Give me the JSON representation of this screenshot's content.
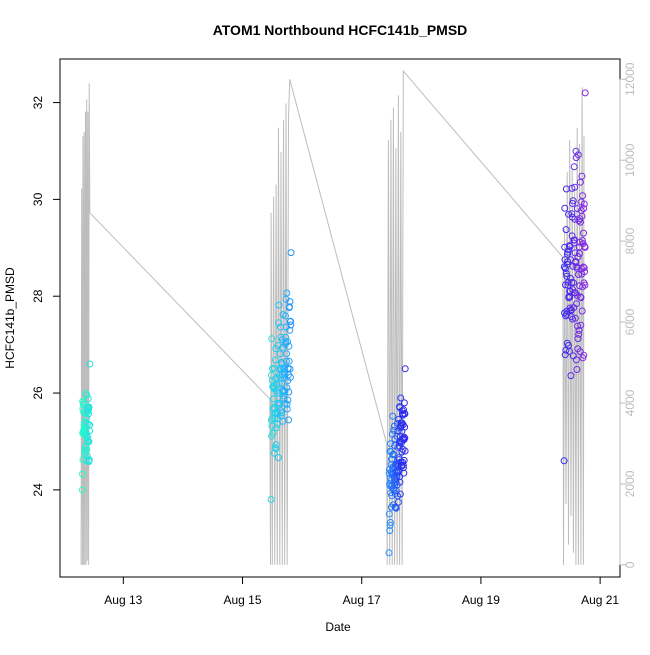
{
  "chart_data": {
    "type": "scatter",
    "title": "ATOM1 Northbound HCFC141b_PMSD",
    "xlabel": "Date",
    "ylabel": "HCFC141b_PMSD",
    "xlim": [
      "2016-08-11T22:30",
      "2016-08-21T08:00"
    ],
    "ylim": [
      22.2,
      32.9
    ],
    "y2lim": [
      -300,
      12500
    ],
    "x_ticks": [
      {
        "label": "Aug 13",
        "t": "2016-08-13T00:00"
      },
      {
        "label": "Aug 15",
        "t": "2016-08-15T00:00"
      },
      {
        "label": "Aug 17",
        "t": "2016-08-17T00:00"
      },
      {
        "label": "Aug 19",
        "t": "2016-08-19T00:00"
      },
      {
        "label": "Aug 21",
        "t": "2016-08-21T00:00"
      }
    ],
    "y_ticks": [
      24,
      26,
      28,
      30,
      32
    ],
    "y2_ticks": [
      0,
      2000,
      4000,
      6000,
      8000,
      10000,
      12000
    ],
    "colors": {
      "points_gradient": [
        "#27ffc8",
        "#22b4ff",
        "#2a2af0",
        "#8a2be2"
      ],
      "line": "#bdbdbd",
      "axis": "#000000",
      "secondary_axis": "#bdbdbd"
    },
    "grid": false,
    "point_groups": [
      {
        "start": "2016-08-12T07:30",
        "end": "2016-08-12T10:30",
        "count": 60,
        "ymin": 24.0,
        "ymax": 26.6,
        "trend": 0.0
      },
      {
        "start": "2016-08-15T11:30",
        "end": "2016-08-15T19:30",
        "count": 110,
        "ymin": 23.8,
        "ymax": 28.9,
        "trend": 1.4
      },
      {
        "start": "2016-08-17T11:00",
        "end": "2016-08-17T17:30",
        "count": 120,
        "ymin": 22.7,
        "ymax": 26.5,
        "trend": 1.5
      },
      {
        "start": "2016-08-20T09:30",
        "end": "2016-08-20T18:00",
        "count": 120,
        "ymin": 24.6,
        "ymax": 32.2,
        "trend": 0.0
      }
    ],
    "secondary_series": {
      "name": "",
      "points": [
        [
          "2016-08-12T07:00",
          0
        ],
        [
          "2016-08-12T07:15",
          9300
        ],
        [
          "2016-08-12T07:30",
          0
        ],
        [
          "2016-08-12T07:45",
          10600
        ],
        [
          "2016-08-12T08:00",
          0
        ],
        [
          "2016-08-12T08:15",
          10700
        ],
        [
          "2016-08-12T08:30",
          0
        ],
        [
          "2016-08-12T08:45",
          11200
        ],
        [
          "2016-08-12T09:00",
          0
        ],
        [
          "2016-08-12T09:15",
          11500
        ],
        [
          "2016-08-12T09:30",
          100
        ],
        [
          "2016-08-12T09:45",
          11200
        ],
        [
          "2016-08-12T10:00",
          0
        ],
        [
          "2016-08-12T10:15",
          11900
        ],
        [
          "2016-08-12T10:30",
          8700
        ],
        [
          "2016-08-15T11:00",
          4100
        ],
        [
          "2016-08-15T11:15",
          0
        ],
        [
          "2016-08-15T11:30",
          8700
        ],
        [
          "2016-08-15T12:00",
          0
        ],
        [
          "2016-08-15T12:30",
          9100
        ],
        [
          "2016-08-15T13:00",
          0
        ],
        [
          "2016-08-15T13:30",
          9400
        ],
        [
          "2016-08-15T14:00",
          0
        ],
        [
          "2016-08-15T14:30",
          10800
        ],
        [
          "2016-08-15T15:00",
          0
        ],
        [
          "2016-08-15T15:30",
          10200
        ],
        [
          "2016-08-15T16:00",
          0
        ],
        [
          "2016-08-15T16:30",
          11000
        ],
        [
          "2016-08-15T17:00",
          0
        ],
        [
          "2016-08-15T17:30",
          11400
        ],
        [
          "2016-08-15T18:00",
          0
        ],
        [
          "2016-08-15T18:30",
          11000
        ],
        [
          "2016-08-15T19:00",
          12000
        ],
        [
          "2016-08-17T10:00",
          3000
        ],
        [
          "2016-08-17T10:15",
          0
        ],
        [
          "2016-08-17T10:45",
          10500
        ],
        [
          "2016-08-17T11:15",
          0
        ],
        [
          "2016-08-17T11:45",
          11000
        ],
        [
          "2016-08-17T12:15",
          0
        ],
        [
          "2016-08-17T12:45",
          11300
        ],
        [
          "2016-08-17T13:15",
          0
        ],
        [
          "2016-08-17T13:45",
          10300
        ],
        [
          "2016-08-17T14:15",
          0
        ],
        [
          "2016-08-17T14:45",
          11600
        ],
        [
          "2016-08-17T15:15",
          0
        ],
        [
          "2016-08-17T15:45",
          10700
        ],
        [
          "2016-08-17T16:15",
          0
        ],
        [
          "2016-08-17T16:45",
          12200
        ],
        [
          "2016-08-20T09:00",
          7600
        ],
        [
          "2016-08-20T09:15",
          0
        ],
        [
          "2016-08-20T09:45",
          8300
        ],
        [
          "2016-08-20T10:15",
          1500
        ],
        [
          "2016-08-20T10:45",
          9700
        ],
        [
          "2016-08-20T11:15",
          500
        ],
        [
          "2016-08-20T11:45",
          10500
        ],
        [
          "2016-08-20T12:15",
          1200
        ],
        [
          "2016-08-20T12:45",
          9800
        ],
        [
          "2016-08-20T13:15",
          300
        ],
        [
          "2016-08-20T13:45",
          9300
        ],
        [
          "2016-08-20T14:15",
          0
        ],
        [
          "2016-08-20T14:45",
          10800
        ],
        [
          "2016-08-20T15:15",
          0
        ],
        [
          "2016-08-20T15:45",
          10400
        ],
        [
          "2016-08-20T16:15",
          0
        ],
        [
          "2016-08-20T16:45",
          11800
        ],
        [
          "2016-08-20T17:15",
          0
        ],
        [
          "2016-08-20T17:30",
          10600
        ]
      ]
    }
  }
}
